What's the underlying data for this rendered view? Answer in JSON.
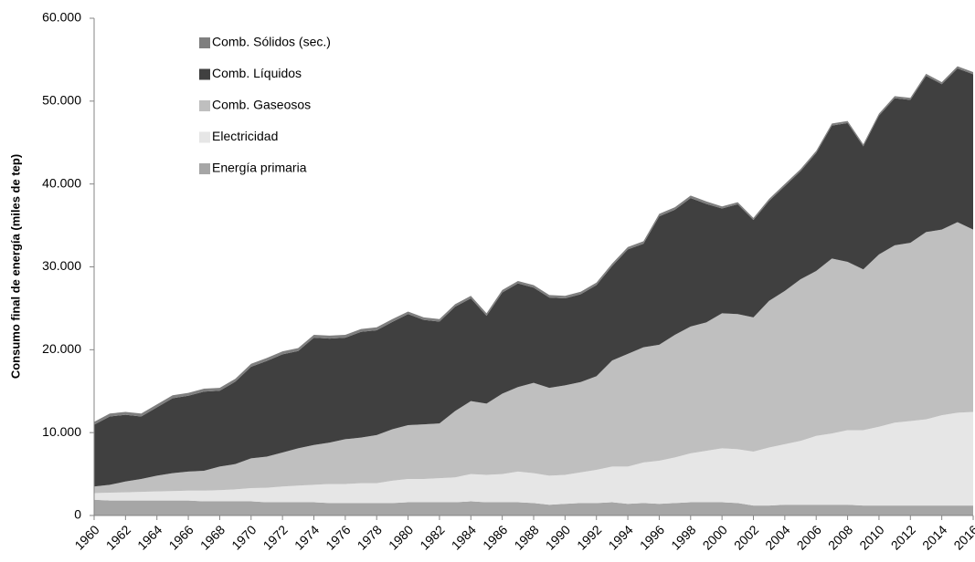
{
  "chart_data": {
    "type": "stacked_area",
    "y_label": "Consumo final de energía (miles de tep)",
    "x": [
      1960,
      1961,
      1962,
      1963,
      1964,
      1965,
      1966,
      1967,
      1968,
      1969,
      1970,
      1971,
      1972,
      1973,
      1974,
      1975,
      1976,
      1977,
      1978,
      1979,
      1980,
      1981,
      1982,
      1983,
      1984,
      1985,
      1986,
      1987,
      1988,
      1989,
      1990,
      1991,
      1992,
      1993,
      1994,
      1995,
      1996,
      1997,
      1998,
      1999,
      2000,
      2001,
      2002,
      2003,
      2004,
      2005,
      2006,
      2007,
      2008,
      2009,
      2010,
      2011,
      2012,
      2013,
      2014,
      2015,
      2016
    ],
    "xlim": [
      1960,
      2016
    ],
    "xticks": [
      1960,
      1962,
      1964,
      1966,
      1968,
      1970,
      1972,
      1974,
      1976,
      1978,
      1980,
      1982,
      1984,
      1986,
      1988,
      1990,
      1992,
      1994,
      1996,
      1998,
      2000,
      2002,
      2004,
      2006,
      2008,
      2010,
      2012,
      2014,
      2016
    ],
    "ylim": [
      0,
      60000
    ],
    "yticks": [
      0,
      {
        "value": 10000,
        "label": "10.000"
      },
      {
        "value": 20000,
        "label": "20.000"
      },
      {
        "value": 30000,
        "label": "30.000"
      },
      {
        "value": 40000,
        "label": "40.000"
      },
      {
        "value": 50000,
        "label": "50.000"
      },
      {
        "value": 60000,
        "label": "60.000"
      }
    ],
    "legend": "upper left",
    "series": [
      {
        "name": "Comb. Sólidos (sec.)",
        "color": "#7f7f7f",
        "values": [
          350,
          350,
          350,
          350,
          350,
          350,
          350,
          350,
          350,
          350,
          350,
          350,
          350,
          350,
          350,
          350,
          350,
          350,
          350,
          350,
          300,
          300,
          300,
          300,
          300,
          300,
          300,
          300,
          300,
          300,
          300,
          300,
          300,
          300,
          300,
          300,
          300,
          300,
          300,
          300,
          250,
          250,
          250,
          250,
          250,
          250,
          250,
          250,
          250,
          250,
          250,
          250,
          250,
          250,
          250,
          250,
          250
        ]
      },
      {
        "name": "Comb. Líquidos",
        "color": "#404040",
        "values": [
          7450,
          8250,
          8050,
          7550,
          8250,
          9050,
          9150,
          9550,
          9150,
          9950,
          11050,
          11550,
          11850,
          11750,
          12950,
          12550,
          12250,
          12750,
          12650,
          12950,
          13400,
          12600,
          12300,
          12600,
          12400,
          10600,
          12200,
          12500,
          11500,
          10900,
          10500,
          10600,
          11000,
          11400,
          12600,
          12500,
          15500,
          15100,
          15500,
          14300,
          12650,
          13250,
          11750,
          12050,
          12650,
          13050,
          14250,
          16050,
          16750,
          14850,
          16750,
          17750,
          17250,
          18850,
          17550,
          18550,
          18750
        ]
      },
      {
        "name": "Comb. Gaseosos",
        "color": "#bfbfbf",
        "values": [
          800,
          950,
          1300,
          1550,
          1900,
          2150,
          2300,
          2400,
          2850,
          3050,
          3600,
          3750,
          4100,
          4500,
          4800,
          5000,
          5400,
          5500,
          5800,
          6200,
          6500,
          6600,
          6600,
          8000,
          8800,
          8600,
          9700,
          10200,
          10900,
          10600,
          10800,
          10900,
          11300,
          12800,
          13600,
          13900,
          14000,
          14800,
          15300,
          15500,
          16300,
          16300,
          16200,
          17700,
          18500,
          19500,
          19900,
          21100,
          20300,
          19400,
          20800,
          21400,
          21500,
          22600,
          22400,
          23000,
          22000
        ]
      },
      {
        "name": "Electricidad",
        "color": "#e6e6e6",
        "values": [
          800,
          950,
          1000,
          1050,
          1100,
          1150,
          1200,
          1300,
          1350,
          1450,
          1600,
          1750,
          1900,
          2000,
          2100,
          2300,
          2300,
          2400,
          2400,
          2700,
          2800,
          2800,
          2900,
          3000,
          3300,
          3300,
          3400,
          3700,
          3600,
          3500,
          3500,
          3700,
          4000,
          4300,
          4500,
          4900,
          5200,
          5500,
          5900,
          6200,
          6500,
          6500,
          6500,
          7000,
          7300,
          7700,
          8300,
          8600,
          9000,
          9100,
          9500,
          10000,
          10200,
          10400,
          10900,
          11200,
          11300
        ]
      },
      {
        "name": "Energía primaria",
        "color": "#a6a6a6",
        "values": [
          1900,
          1800,
          1800,
          1800,
          1800,
          1800,
          1800,
          1700,
          1700,
          1700,
          1700,
          1600,
          1600,
          1600,
          1600,
          1500,
          1500,
          1500,
          1500,
          1500,
          1600,
          1600,
          1600,
          1600,
          1700,
          1600,
          1600,
          1600,
          1500,
          1300,
          1400,
          1500,
          1500,
          1600,
          1400,
          1500,
          1400,
          1500,
          1600,
          1600,
          1600,
          1500,
          1200,
          1200,
          1300,
          1300,
          1300,
          1300,
          1300,
          1200,
          1200,
          1200,
          1200,
          1200,
          1200,
          1200,
          1200
        ]
      }
    ]
  }
}
